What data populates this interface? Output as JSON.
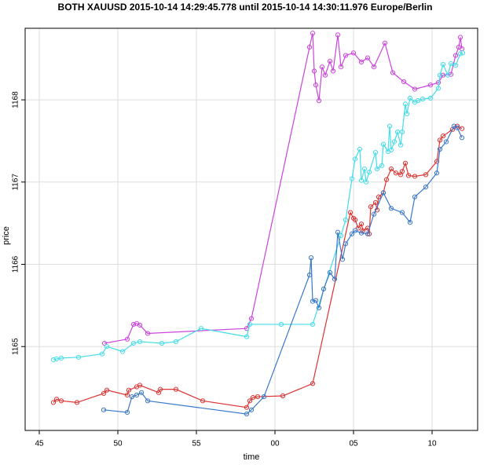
{
  "chart_data": {
    "type": "line",
    "title": "BOTH XAUUSD  2015-10-14 14:29:45.778 until 2015-10-14 14:30:11.976 Europe/Berlin",
    "x_label": "time",
    "y_label": "price",
    "xlim": [
      44.1,
      72.9
    ],
    "ylim": [
      1163.98,
      1168.87
    ],
    "xticks": [
      45,
      50,
      55,
      {
        "value": 60,
        "label": "00"
      },
      {
        "value": 65,
        "label": "05"
      },
      {
        "value": 70,
        "label": "10"
      }
    ],
    "yticks": [
      1165,
      1166,
      1167,
      1168
    ],
    "grid": true,
    "series": [
      {
        "color": "#cc44dd",
        "x": [
          49.15,
          50.6,
          51.0,
          51.2,
          51.4,
          51.9,
          58.2,
          58.5,
          62.2,
          62.4,
          62.5,
          62.6,
          62.8,
          63.0,
          63.2,
          63.5,
          63.7,
          64.0,
          64.2,
          64.5,
          65.0,
          65.5,
          65.9,
          66.3,
          67.0,
          67.5,
          68.2,
          68.9,
          69.9,
          70.4,
          70.7,
          71.2,
          71.5,
          71.7,
          71.8,
          71.9
        ],
        "values": [
          1165.04,
          1165.09,
          1165.27,
          1165.28,
          1165.26,
          1165.16,
          1165.22,
          1165.34,
          1168.64,
          1168.81,
          1168.35,
          1168.18,
          1167.99,
          1168.4,
          1168.3,
          1168.47,
          1168.35,
          1168.79,
          1168.4,
          1168.54,
          1168.57,
          1168.46,
          1168.51,
          1168.4,
          1168.69,
          1168.33,
          1168.22,
          1168.13,
          1168.18,
          1168.21,
          1168.3,
          1168.31,
          1168.54,
          1168.64,
          1168.76,
          1168.62
        ]
      },
      {
        "color": "#44dde8",
        "x": [
          45.9,
          46.1,
          46.4,
          47.5,
          49.0,
          49.3,
          50.3,
          51.0,
          51.4,
          52.8,
          53.7,
          55.3,
          58.2,
          58.4,
          60.4,
          62.4,
          64.2,
          64.5,
          64.9,
          65.1,
          65.4,
          65.5,
          65.7,
          65.8,
          66.0,
          66.4,
          66.5,
          66.8,
          66.9,
          67.2,
          67.3,
          67.4,
          67.6,
          67.8,
          68.0,
          68.1,
          68.3,
          68.4,
          68.6,
          68.9,
          69.1,
          69.4,
          69.9,
          70.4,
          70.5,
          70.7,
          71.0,
          71.2,
          71.5,
          71.8,
          71.95
        ],
        "values": [
          1164.84,
          1164.85,
          1164.86,
          1164.87,
          1164.91,
          1165.0,
          1164.94,
          1165.04,
          1165.06,
          1165.04,
          1165.06,
          1165.22,
          1165.12,
          1165.27,
          1165.27,
          1165.27,
          1166.35,
          1166.54,
          1167.04,
          1167.28,
          1167.4,
          1167.02,
          1167.16,
          1167.0,
          1167.12,
          1167.36,
          1167.16,
          1167.2,
          1167.46,
          1167.37,
          1167.68,
          1167.39,
          1167.49,
          1167.61,
          1167.45,
          1167.61,
          1167.95,
          1167.83,
          1168.02,
          1167.97,
          1167.99,
          1168.01,
          1168.02,
          1168.14,
          1168.3,
          1168.43,
          1168.3,
          1168.44,
          1168.42,
          1168.56,
          1168.57
        ]
      },
      {
        "color": "#dd3333",
        "x": [
          45.9,
          46.1,
          46.4,
          47.4,
          49.1,
          49.3,
          50.6,
          50.7,
          51.2,
          51.4,
          52.6,
          52.7,
          53.7,
          55.4,
          58.2,
          58.4,
          58.6,
          58.9,
          60.5,
          62.4,
          64.8,
          65.0,
          65.1,
          65.3,
          65.5,
          65.6,
          65.9,
          66.0,
          66.1,
          66.4,
          66.5,
          66.6,
          66.9,
          67.1,
          67.4,
          67.7,
          68.0,
          68.1,
          68.3,
          68.5,
          68.9,
          69.6,
          70.3,
          70.5,
          70.7,
          71.3,
          71.6,
          71.9
        ],
        "values": [
          1164.32,
          1164.36,
          1164.34,
          1164.32,
          1164.43,
          1164.47,
          1164.41,
          1164.47,
          1164.51,
          1164.53,
          1164.44,
          1164.48,
          1164.48,
          1164.34,
          1164.26,
          1164.34,
          1164.38,
          1164.39,
          1164.4,
          1164.55,
          1166.63,
          1166.56,
          1166.54,
          1166.44,
          1166.49,
          1166.41,
          1166.44,
          1166.37,
          1166.7,
          1166.75,
          1166.66,
          1166.82,
          1166.87,
          1167.03,
          1167.16,
          1167.11,
          1167.09,
          1167.13,
          1167.23,
          1167.08,
          1167.07,
          1167.09,
          1167.25,
          1167.51,
          1167.56,
          1167.64,
          1167.68,
          1167.65
        ]
      },
      {
        "color": "#3a78cc",
        "x": [
          49.1,
          50.6,
          50.9,
          51.2,
          51.5,
          51.9,
          58.2,
          58.5,
          59.3,
          62.2,
          62.3,
          62.4,
          62.6,
          62.8,
          63.1,
          63.5,
          63.8,
          64.0,
          64.3,
          64.5,
          64.9,
          65.1,
          65.5,
          65.9,
          66.3,
          66.9,
          67.4,
          68.1,
          68.6,
          68.9,
          69.6,
          70.3,
          70.5,
          70.9,
          71.4,
          71.6,
          71.9
        ],
        "values": [
          1164.23,
          1164.2,
          1164.39,
          1164.41,
          1164.44,
          1164.34,
          1164.18,
          1164.23,
          1164.39,
          1165.87,
          1166.08,
          1165.55,
          1165.56,
          1165.47,
          1165.7,
          1165.9,
          1165.82,
          1166.39,
          1166.06,
          1166.25,
          1166.37,
          1166.41,
          1166.38,
          1166.37,
          1166.61,
          1166.87,
          1166.68,
          1166.63,
          1166.51,
          1166.82,
          1166.94,
          1167.11,
          1167.4,
          1167.49,
          1167.68,
          1167.66,
          1167.54
        ]
      }
    ]
  }
}
